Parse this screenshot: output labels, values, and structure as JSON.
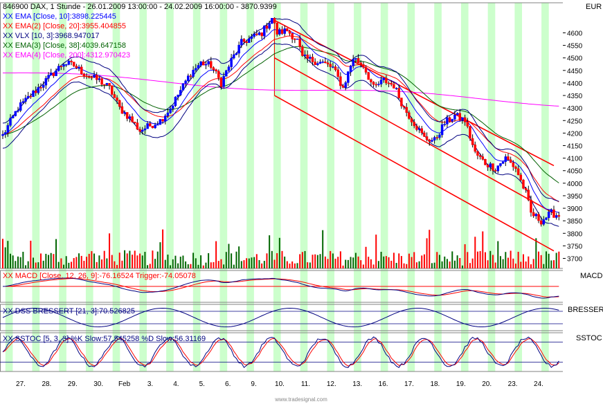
{
  "header": {
    "symbol_line": "846900  DAX, 1 Stunde - 26.01.2009 13:00:00 - 24.02.2009 16:00:00 - 3870.9399"
  },
  "legend": [
    {
      "text": "XX EMA [Close, 10]:3898.225445",
      "color": "#0000ff"
    },
    {
      "text": "XX EMA(2) [Close, 20]:3955.404855",
      "color": "#ff0000"
    },
    {
      "text": "XX VLX [10, 3]:3968.947017",
      "color": "#000080"
    },
    {
      "text": "XX EMA(3) [Close, 38]:4039.647158",
      "color": "#006000"
    },
    {
      "text": "XX EMA(4) [Close, 200]:4312.970423",
      "color": "#ff00ff"
    }
  ],
  "currency_label": "EUR",
  "macd_legend": "XX MACD [Close, 12, 26, 9]:-76.16524 Trigger:-74.05078",
  "dss_legend": "XX DSS BRESSERT [21, 3]:70.526825",
  "sstoc_legend": "XX SSTOC [5, 3, 3] %K Slow:57.545258 %D Slow:56.31169",
  "panel_titles": {
    "macd": "MACD",
    "dss": "BRESSERT",
    "sstoc": "SSTOC"
  },
  "footer": "www.tradesignal.com",
  "colors": {
    "stripe": "#ccffcc",
    "background": "#ffffff",
    "up_candle": "#0000ff",
    "down_candle": "#ff0000",
    "volume_up": "#006600",
    "volume_down": "#ff0000",
    "channel": "#ff0000",
    "ema10": "#0000ff",
    "ema20": "#ff0000",
    "ema38": "#006000",
    "ema200": "#ff00ff",
    "vlx": "#000080"
  },
  "chart_data": [
    {
      "type": "candlestick",
      "ylim": [
        3660,
        4720
      ],
      "y_ticks": [
        3700,
        3750,
        3800,
        3850,
        3900,
        3950,
        4000,
        4050,
        4100,
        4150,
        4200,
        4250,
        4300,
        4350,
        4400,
        4450,
        4500,
        4550,
        4600
      ],
      "x_labels": [
        "27.",
        "28.",
        "29.",
        "30.",
        "Feb",
        "3.",
        "4.",
        "5.",
        "6.",
        "9.",
        "10.",
        "11.",
        "12.",
        "13.",
        "16.",
        "17.",
        "18.",
        "19.",
        "20.",
        "23.",
        "24."
      ],
      "close_anchors": [
        [
          0,
          4190
        ],
        [
          6,
          4300
        ],
        [
          12,
          4360
        ],
        [
          18,
          4420
        ],
        [
          24,
          4480
        ],
        [
          28,
          4470
        ],
        [
          33,
          4430
        ],
        [
          38,
          4410
        ],
        [
          42,
          4380
        ],
        [
          46,
          4300
        ],
        [
          50,
          4260
        ],
        [
          54,
          4210
        ],
        [
          58,
          4230
        ],
        [
          62,
          4250
        ],
        [
          66,
          4300
        ],
        [
          70,
          4370
        ],
        [
          74,
          4440
        ],
        [
          78,
          4480
        ],
        [
          82,
          4470
        ],
        [
          86,
          4400
        ],
        [
          90,
          4490
        ],
        [
          94,
          4560
        ],
        [
          98,
          4580
        ],
        [
          102,
          4600
        ],
        [
          106,
          4660
        ],
        [
          108,
          4600
        ],
        [
          112,
          4610
        ],
        [
          116,
          4570
        ],
        [
          118,
          4500
        ],
        [
          122,
          4490
        ],
        [
          126,
          4480
        ],
        [
          130,
          4460
        ],
        [
          134,
          4380
        ],
        [
          138,
          4500
        ],
        [
          142,
          4470
        ],
        [
          146,
          4380
        ],
        [
          150,
          4410
        ],
        [
          154,
          4390
        ],
        [
          158,
          4300
        ],
        [
          162,
          4240
        ],
        [
          166,
          4180
        ],
        [
          170,
          4170
        ],
        [
          174,
          4240
        ],
        [
          178,
          4270
        ],
        [
          182,
          4250
        ],
        [
          186,
          4120
        ],
        [
          190,
          4080
        ],
        [
          194,
          4060
        ],
        [
          198,
          4100
        ],
        [
          202,
          4060
        ],
        [
          206,
          3960
        ],
        [
          208,
          3880
        ],
        [
          212,
          3850
        ],
        [
          216,
          3880
        ],
        [
          219,
          3871
        ]
      ],
      "channel_upper": [
        [
          4650,
          4710
        ],
        [
          4050,
          4070
        ]
      ],
      "channel_middle": [
        [
          4500,
          4520
        ],
        [
          3900,
          3880
        ]
      ],
      "channel_lower": [
        [
          4350,
          4340
        ],
        [
          3750,
          3730
        ]
      ]
    },
    {
      "type": "line",
      "name": "MACD",
      "trigger": -74.05078,
      "value": -76.16524
    },
    {
      "type": "line",
      "name": "DSS BRESSERT",
      "value": 70.526825
    },
    {
      "type": "line",
      "name": "SSTOC",
      "k_slow": 57.545258,
      "d_slow": 56.31169
    }
  ]
}
